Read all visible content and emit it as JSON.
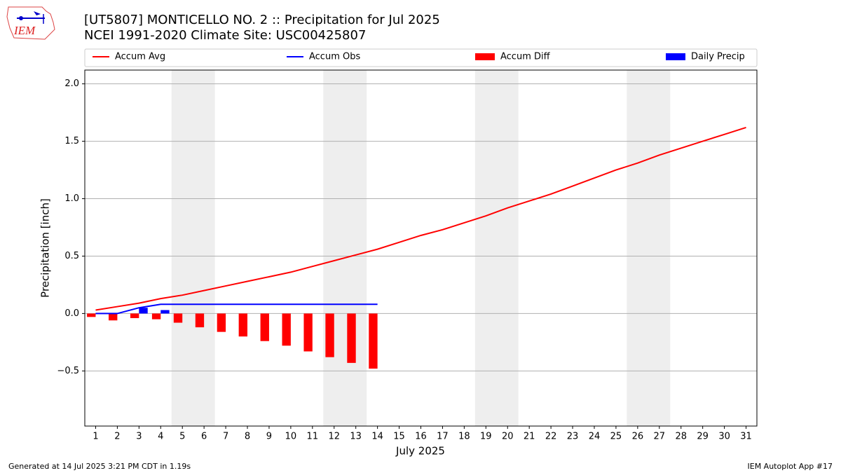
{
  "chart_data": {
    "type": "line",
    "title": "[UT5807] MONTICELLO NO. 2 :: Precipitation for Jul 2025",
    "subtitle": "NCEI 1991-2020 Climate Site: USC00425807",
    "y_label": "Precipitation [inch]",
    "x_label": "July 2025",
    "footer_left": "Generated at 14 Jul 2025 3:21 PM CDT in 1.19s",
    "footer_right": "IEM Autoplot App #17",
    "logo_text": "IEM",
    "x": [
      1,
      2,
      3,
      4,
      5,
      6,
      7,
      8,
      9,
      10,
      11,
      12,
      13,
      14,
      15,
      16,
      17,
      18,
      19,
      20,
      21,
      22,
      23,
      24,
      25,
      26,
      27,
      28,
      29,
      30,
      31
    ],
    "xlim": [
      0.5,
      31.5
    ],
    "xticks": [
      1,
      2,
      3,
      4,
      5,
      6,
      7,
      8,
      9,
      10,
      11,
      12,
      13,
      14,
      15,
      16,
      17,
      18,
      19,
      20,
      21,
      22,
      23,
      24,
      25,
      26,
      27,
      28,
      29,
      30,
      31
    ],
    "ylim": [
      -0.98,
      2.12
    ],
    "yticks": [
      {
        "value": -0.5,
        "label": "−0.5"
      },
      {
        "value": 0,
        "label": "0.0"
      },
      0.5,
      {
        "value": 1,
        "label": "1.0"
      },
      1.5,
      {
        "value": 2,
        "label": "2.0"
      }
    ],
    "grid": true,
    "shaded_spans": [
      [
        4.5,
        6.5
      ],
      [
        11.5,
        13.5
      ],
      [
        18.5,
        20.5
      ],
      [
        25.5,
        27.5
      ]
    ],
    "shade_color": "#eeeeee",
    "legend": "top",
    "series": [
      {
        "name": "Accum Avg",
        "type": "line",
        "color": "#ff0000",
        "values": [
          0.03,
          0.06,
          0.09,
          0.13,
          0.16,
          0.2,
          0.24,
          0.28,
          0.32,
          0.36,
          0.41,
          0.46,
          0.51,
          0.56,
          0.62,
          0.68,
          0.73,
          0.79,
          0.85,
          0.92,
          0.98,
          1.04,
          1.11,
          1.18,
          1.25,
          1.31,
          1.38,
          1.44,
          1.5,
          1.56,
          1.62
        ]
      },
      {
        "name": "Accum Obs",
        "type": "line",
        "color": "#0000ff",
        "values": [
          0,
          0,
          0.05,
          0.08,
          0.08,
          0.08,
          0.08,
          0.08,
          0.08,
          0.08,
          0.08,
          0.08,
          0.08,
          0.08,
          null,
          null,
          null,
          null,
          null,
          null,
          null,
          null,
          null,
          null,
          null,
          null,
          null,
          null,
          null,
          null,
          null
        ]
      },
      {
        "name": "Accum Diff",
        "type": "bar",
        "color": "#ff0000",
        "offset": -0.2,
        "values": [
          -0.03,
          -0.06,
          -0.04,
          -0.05,
          -0.08,
          -0.12,
          -0.16,
          -0.2,
          -0.24,
          -0.28,
          -0.33,
          -0.38,
          -0.43,
          -0.48,
          null,
          null,
          null,
          null,
          null,
          null,
          null,
          null,
          null,
          null,
          null,
          null,
          null,
          null,
          null,
          null,
          null
        ]
      },
      {
        "name": "Daily Precip",
        "type": "bar",
        "color": "#0000ff",
        "offset": 0.2,
        "values": [
          0,
          0,
          0.05,
          0.03,
          0,
          0,
          0,
          0,
          0,
          0,
          0,
          0,
          0,
          0,
          null,
          null,
          null,
          null,
          null,
          null,
          null,
          null,
          null,
          null,
          null,
          null,
          null,
          null,
          null,
          null,
          null
        ]
      }
    ]
  }
}
